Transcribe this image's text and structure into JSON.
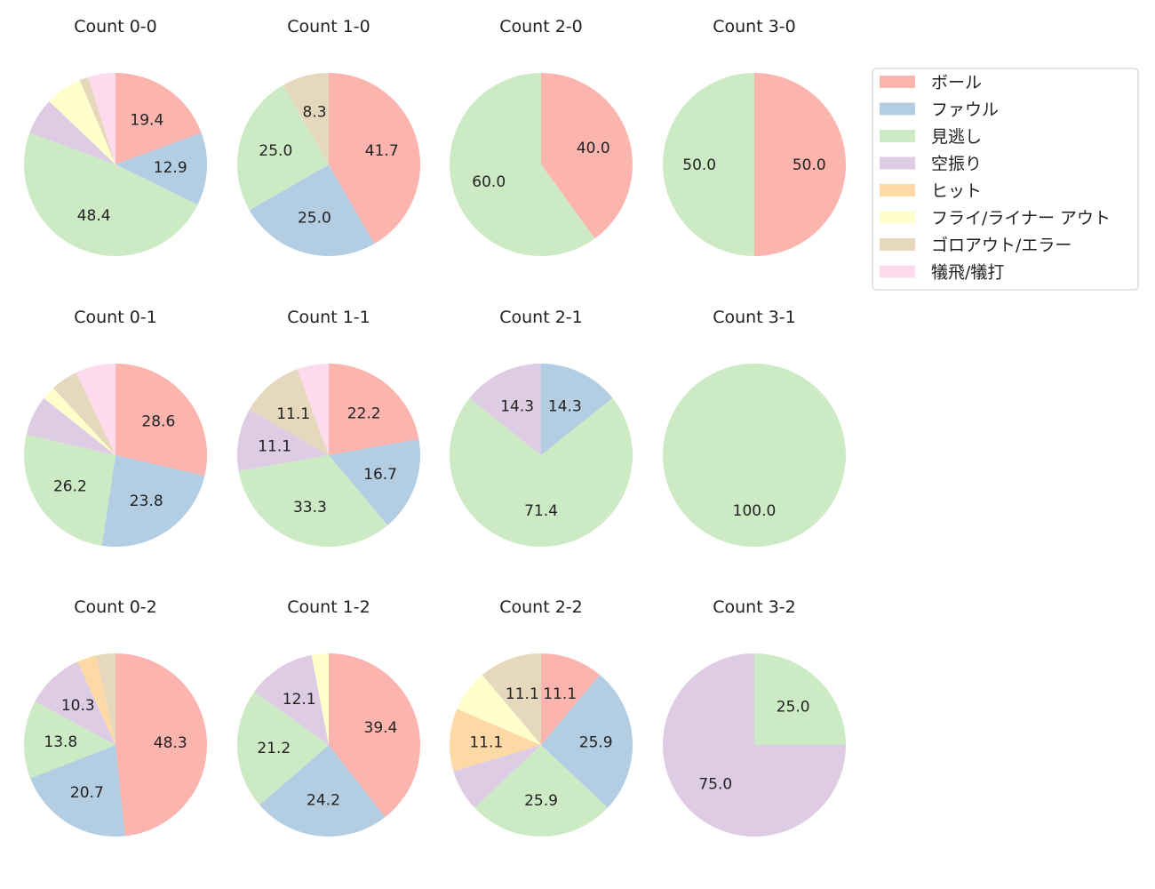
{
  "chart_data": {
    "type": "pie",
    "categories": [
      "ボール",
      "ファウル",
      "見逃し",
      "空振り",
      "ヒット",
      "フライ/ライナー アウト",
      "ゴロアウト/エラー",
      "犠飛/犠打"
    ],
    "colors": [
      "#fbb4ae",
      "#b3cde3",
      "#ccebc5",
      "#decbe4",
      "#fed9a6",
      "#ffffcc",
      "#e5d8bd",
      "#fddaec"
    ],
    "legend_position": "right",
    "start_angle_deg": 90,
    "direction": "clockwise",
    "pies": [
      {
        "title": "Count 0-0",
        "values": [
          19.4,
          12.9,
          48.4,
          6.5,
          0,
          6.5,
          1.6,
          4.8
        ]
      },
      {
        "title": "Count 1-0",
        "values": [
          41.7,
          25.0,
          25.0,
          0,
          0,
          0,
          8.3,
          0
        ]
      },
      {
        "title": "Count 2-0",
        "values": [
          40.0,
          0,
          60.0,
          0,
          0,
          0,
          0,
          0
        ]
      },
      {
        "title": "Count 3-0",
        "values": [
          50.0,
          0,
          50.0,
          0,
          0,
          0,
          0,
          0
        ]
      },
      {
        "title": "Count 0-1",
        "values": [
          28.6,
          23.8,
          26.2,
          7.1,
          0,
          2.4,
          4.8,
          7.1
        ]
      },
      {
        "title": "Count 1-1",
        "values": [
          22.2,
          16.7,
          33.3,
          11.1,
          0,
          0,
          11.1,
          5.6
        ]
      },
      {
        "title": "Count 2-1",
        "values": [
          0,
          14.3,
          71.4,
          14.3,
          0,
          0,
          0,
          0
        ]
      },
      {
        "title": "Count 3-1",
        "values": [
          0,
          0,
          100.0,
          0,
          0,
          0,
          0,
          0
        ]
      },
      {
        "title": "Count 0-2",
        "values": [
          48.3,
          20.7,
          13.8,
          10.3,
          3.4,
          0,
          3.4,
          0
        ]
      },
      {
        "title": "Count 1-2",
        "values": [
          39.4,
          24.2,
          21.2,
          12.1,
          0,
          3.0,
          0,
          0
        ]
      },
      {
        "title": "Count 2-2",
        "values": [
          11.1,
          25.9,
          25.9,
          7.4,
          11.1,
          7.4,
          11.1,
          0
        ]
      },
      {
        "title": "Count 3-2",
        "values": [
          0,
          0,
          25.0,
          75.0,
          0,
          0,
          0,
          0
        ]
      }
    ]
  }
}
